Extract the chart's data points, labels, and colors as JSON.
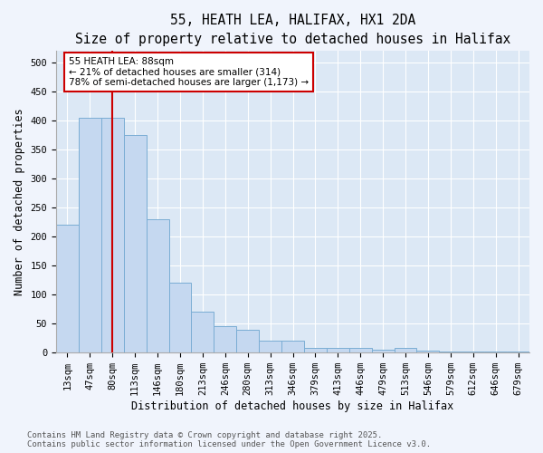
{
  "title_line1": "55, HEATH LEA, HALIFAX, HX1 2DA",
  "title_line2": "Size of property relative to detached houses in Halifax",
  "xlabel": "Distribution of detached houses by size in Halifax",
  "ylabel": "Number of detached properties",
  "categories": [
    "13sqm",
    "47sqm",
    "80sqm",
    "113sqm",
    "146sqm",
    "180sqm",
    "213sqm",
    "246sqm",
    "280sqm",
    "313sqm",
    "346sqm",
    "379sqm",
    "413sqm",
    "446sqm",
    "479sqm",
    "513sqm",
    "546sqm",
    "579sqm",
    "612sqm",
    "646sqm",
    "679sqm"
  ],
  "values": [
    220,
    405,
    405,
    375,
    230,
    120,
    70,
    45,
    40,
    20,
    20,
    8,
    8,
    8,
    5,
    8,
    3,
    2,
    2,
    2,
    2
  ],
  "bar_color": "#c5d8f0",
  "bar_edge_color": "#7aadd4",
  "bg_color": "#dce8f5",
  "vline_x_index": 2,
  "vline_color": "#cc0000",
  "annotation_text": "55 HEATH LEA: 88sqm\n← 21% of detached houses are smaller (314)\n78% of semi-detached houses are larger (1,173) →",
  "annotation_box_color": "#cc0000",
  "annotation_bg": "#ffffff",
  "ylim": [
    0,
    520
  ],
  "yticks": [
    0,
    50,
    100,
    150,
    200,
    250,
    300,
    350,
    400,
    450,
    500
  ],
  "footer_line1": "Contains HM Land Registry data © Crown copyright and database right 2025.",
  "footer_line2": "Contains public sector information licensed under the Open Government Licence v3.0.",
  "title_fontsize": 10.5,
  "subtitle_fontsize": 9.5,
  "axis_label_fontsize": 8.5,
  "tick_fontsize": 7.5,
  "annot_fontsize": 7.5,
  "footer_fontsize": 6.5,
  "fig_width": 6.0,
  "fig_height": 5.0,
  "fig_bg_color": "#f0f4fc"
}
